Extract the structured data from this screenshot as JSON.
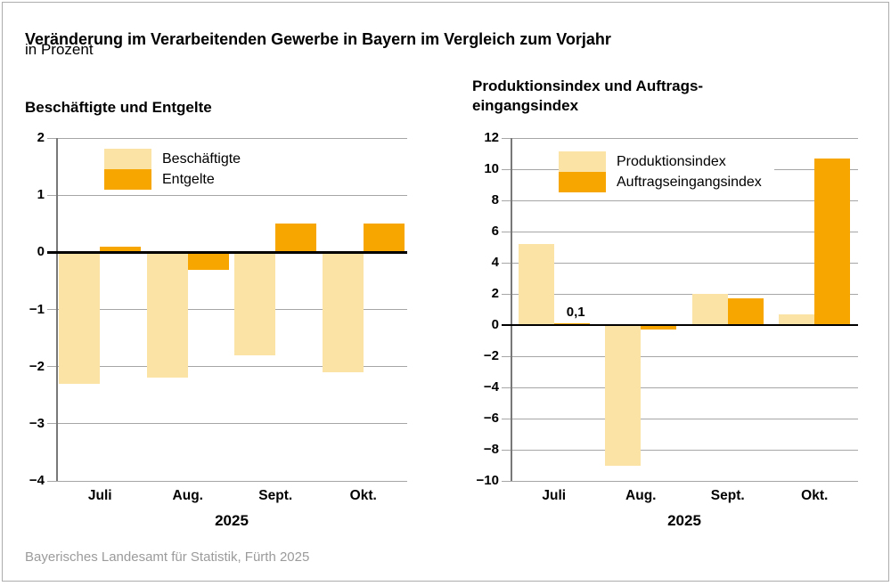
{
  "header": {
    "title": "Veränderung im Verarbeitenden Gewerbe in Bayern im Vergleich zum Vorjahr",
    "subtitle": "in Prozent"
  },
  "footer": {
    "source": "Bayerisches Landesamt für Statistik, Fürth 2025"
  },
  "colors": {
    "series_light": "#FBE3A6",
    "series_orange": "#F7A600",
    "gridline": "#A6A6A6",
    "zero_line": "#000000",
    "axis_line": "#787878",
    "source_text": "#9B9B9B",
    "frame_border": "#ADADAD"
  },
  "chart_data": [
    {
      "type": "bar",
      "title_lines": [
        "Beschäftigte und Entgelte"
      ],
      "categories": [
        "Juli",
        "Aug.",
        "Sept.",
        "Okt."
      ],
      "xlabel": "2025",
      "ylim": [
        -4,
        2
      ],
      "yticks": [
        2,
        1,
        0,
        -1,
        -2,
        -3,
        -4
      ],
      "grid": true,
      "legend_position": "upper-left",
      "series": [
        {
          "name": "Beschäftigte",
          "color_key": "series_light",
          "values": [
            -2.3,
            -2.2,
            -1.8,
            -2.1
          ]
        },
        {
          "name": "Entgelte",
          "color_key": "series_orange",
          "values": [
            0.1,
            -0.3,
            0.5,
            0.5
          ]
        }
      ],
      "annotations": []
    },
    {
      "type": "bar",
      "title_lines": [
        "Produktionsindex und Auftrags-",
        "eingangsindex"
      ],
      "categories": [
        "Juli",
        "Aug.",
        "Sept.",
        "Okt."
      ],
      "xlabel": "2025",
      "ylim": [
        -10,
        12
      ],
      "yticks": [
        12,
        10,
        8,
        6,
        4,
        2,
        0,
        -2,
        -4,
        -6,
        -8,
        -10
      ],
      "grid": true,
      "legend_position": "upper-left",
      "series": [
        {
          "name": "Produktionsindex",
          "color_key": "series_light",
          "values": [
            5.2,
            -9.0,
            2.0,
            0.7
          ]
        },
        {
          "name": "Auftragseingangsindex",
          "color_key": "series_orange",
          "values": [
            0.1,
            -0.3,
            1.7,
            10.7
          ]
        }
      ],
      "annotations": [
        {
          "text": "0,1",
          "series_index": 1,
          "category_index": 0
        }
      ]
    }
  ]
}
